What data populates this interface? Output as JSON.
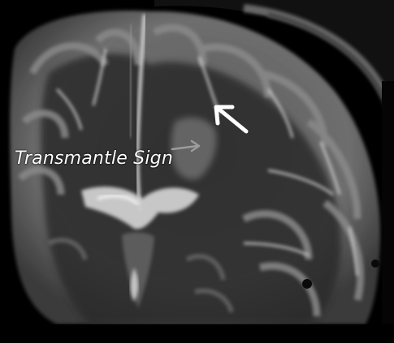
{
  "image": {
    "kind": "MRI brain coronal T2-weighted",
    "caption": "Transmantle Sign",
    "annotations": [
      "small-arrow",
      "large-white-arrow"
    ],
    "colors": {
      "background": "#000000",
      "gray_matter": "#6a6a6a",
      "white_matter": "#2e2e2e",
      "csf": "#cfcfcf",
      "annotation": "#ffffff"
    }
  }
}
